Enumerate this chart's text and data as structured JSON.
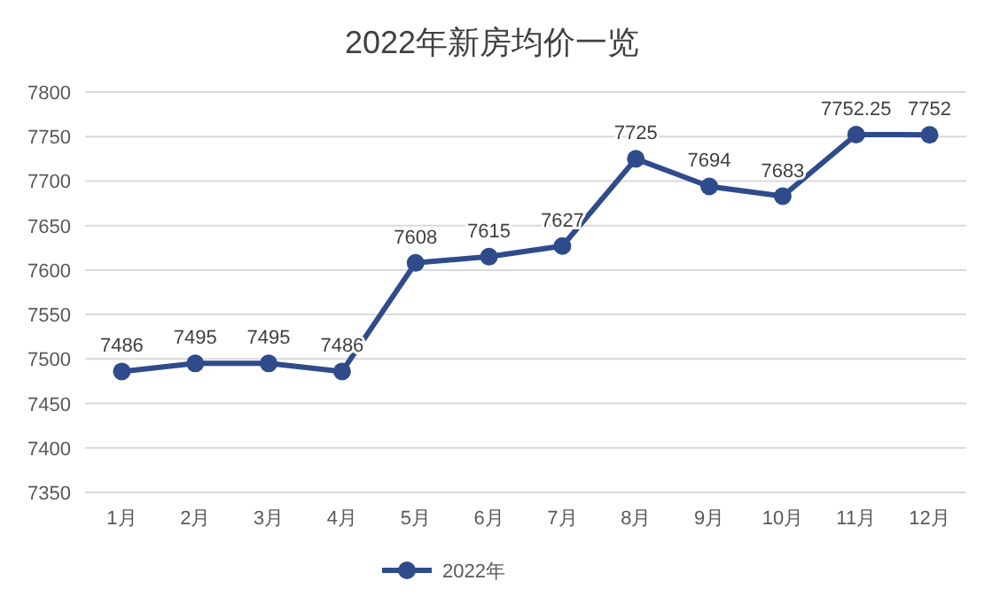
{
  "chart_data": {
    "type": "line",
    "title": "2022年新房均价一览",
    "categories": [
      "1月",
      "2月",
      "3月",
      "4月",
      "5月",
      "6月",
      "7月",
      "8月",
      "9月",
      "10月",
      "11月",
      "12月"
    ],
    "series": [
      {
        "name": "2022年",
        "color": "#2f4b8c",
        "values": [
          7486,
          7495,
          7495,
          7486,
          7608,
          7615,
          7627,
          7725,
          7694,
          7683,
          7752.25,
          7752
        ]
      }
    ],
    "ylim": [
      7350,
      7800
    ],
    "yticks": [
      7350,
      7400,
      7450,
      7500,
      7550,
      7600,
      7650,
      7700,
      7750,
      7800
    ],
    "grid": "y",
    "legend": "bottom",
    "marker": "circle",
    "line_style": "solid",
    "data_labels": true
  }
}
